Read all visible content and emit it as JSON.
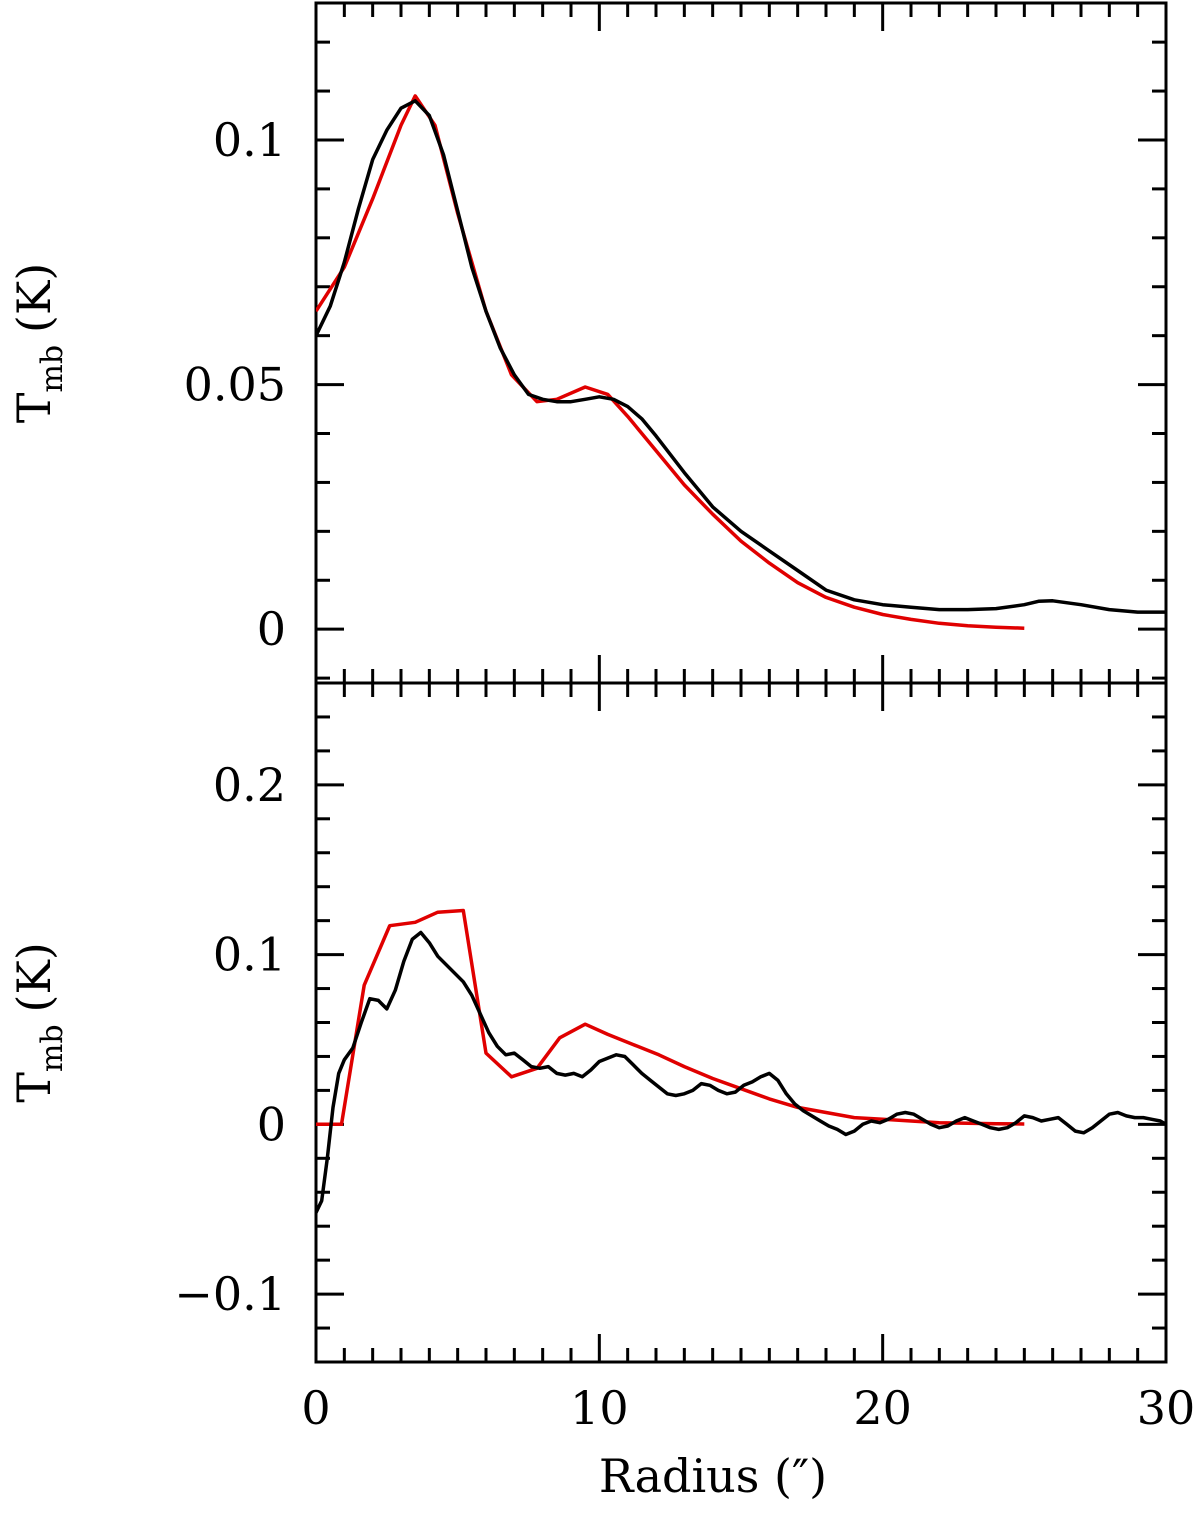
{
  "chart_data": [
    {
      "type": "line",
      "panel": "top",
      "ylabel": "T",
      "ylabel_subscript": "mb",
      "ylabel_unit": "(K)",
      "xlim": [
        0,
        30
      ],
      "ylim": [
        -0.011,
        0.128
      ],
      "x_ticks": [
        0,
        10,
        20,
        30
      ],
      "x_tick_labels_shown": false,
      "y_ticks": [
        0,
        0.05,
        0.1
      ],
      "y_tick_labels": [
        "0",
        "0.05",
        "0.1"
      ],
      "grid": false,
      "series": [
        {
          "color": "#e00000",
          "x": [
            0,
            1,
            2,
            3,
            3.5,
            4.2,
            5,
            6,
            6.9,
            7.8,
            8.5,
            9.5,
            10.3,
            11,
            12,
            13,
            14,
            15,
            16,
            17,
            18,
            19,
            20,
            21,
            22,
            23,
            24,
            25
          ],
          "y": [
            0.065,
            0.074,
            0.088,
            0.103,
            0.109,
            0.103,
            0.085,
            0.065,
            0.052,
            0.0465,
            0.047,
            0.0495,
            0.048,
            0.0435,
            0.0365,
            0.0295,
            0.0235,
            0.018,
            0.0135,
            0.0095,
            0.0065,
            0.0045,
            0.003,
            0.002,
            0.0012,
            0.0007,
            0.0004,
            0.0002
          ]
        },
        {
          "color": "#000000",
          "x": [
            0,
            0.5,
            1,
            1.5,
            2,
            2.5,
            3,
            3.5,
            4,
            4.5,
            5,
            5.5,
            6,
            6.5,
            7,
            7.5,
            8,
            8.5,
            9,
            9.5,
            10,
            10.5,
            11,
            11.5,
            12,
            13,
            14,
            15,
            16,
            17,
            18,
            19,
            20,
            21,
            22,
            23,
            24,
            25,
            25.5,
            26,
            27,
            28,
            29,
            30
          ],
          "y": [
            0.06,
            0.066,
            0.075,
            0.086,
            0.096,
            0.102,
            0.1065,
            0.108,
            0.105,
            0.097,
            0.0855,
            0.074,
            0.065,
            0.0575,
            0.052,
            0.048,
            0.047,
            0.0465,
            0.0465,
            0.047,
            0.0475,
            0.047,
            0.0455,
            0.043,
            0.0395,
            0.032,
            0.025,
            0.02,
            0.016,
            0.012,
            0.008,
            0.006,
            0.005,
            0.0045,
            0.004,
            0.004,
            0.0042,
            0.005,
            0.0057,
            0.0058,
            0.005,
            0.004,
            0.0035,
            0.0035
          ]
        }
      ]
    },
    {
      "type": "line",
      "panel": "bottom",
      "ylabel": "T",
      "ylabel_subscript": "mb",
      "ylabel_unit": "(K)",
      "xlabel": "Radius (″)",
      "xlim": [
        0,
        30
      ],
      "ylim": [
        -0.14,
        0.26
      ],
      "x_ticks": [
        0,
        10,
        20,
        30
      ],
      "x_tick_labels": [
        "0",
        "10",
        "20",
        "30"
      ],
      "y_ticks": [
        -0.1,
        0,
        0.1,
        0.2
      ],
      "y_tick_labels": [
        "−0.1",
        "0",
        "0.1",
        "0.2"
      ],
      "grid": false,
      "series": [
        {
          "color": "#e00000",
          "x": [
            0,
            0.9,
            1.7,
            2.6,
            3.5,
            4.3,
            5.2,
            6,
            6.9,
            7.8,
            8.6,
            9.5,
            10.3,
            11.2,
            12.1,
            13,
            14,
            15,
            16,
            17,
            18,
            19,
            20,
            21,
            22,
            23,
            24,
            25
          ],
          "y": [
            0,
            0,
            0.082,
            0.117,
            0.119,
            0.125,
            0.126,
            0.042,
            0.028,
            0.033,
            0.051,
            0.059,
            0.053,
            0.047,
            0.041,
            0.034,
            0.027,
            0.021,
            0.015,
            0.01,
            0.007,
            0.004,
            0.003,
            0.002,
            0.001,
            0.0007,
            0.0004,
            0.0002
          ]
        },
        {
          "color": "#000000",
          "x": [
            0,
            0.2,
            0.4,
            0.6,
            0.8,
            1,
            1.3,
            1.6,
            1.9,
            2.2,
            2.5,
            2.8,
            3.1,
            3.4,
            3.7,
            4,
            4.3,
            4.6,
            4.9,
            5.2,
            5.5,
            5.8,
            6.1,
            6.4,
            6.7,
            7,
            7.3,
            7.6,
            7.9,
            8.2,
            8.5,
            8.8,
            9.1,
            9.4,
            9.7,
            10,
            10.3,
            10.6,
            10.9,
            11.2,
            11.5,
            11.8,
            12.1,
            12.4,
            12.7,
            13,
            13.3,
            13.6,
            13.9,
            14.2,
            14.5,
            14.8,
            15.1,
            15.4,
            15.7,
            16,
            16.3,
            16.6,
            16.9,
            17.2,
            17.5,
            17.8,
            18.1,
            18.4,
            18.7,
            19,
            19.3,
            19.6,
            19.9,
            20.2,
            20.5,
            20.8,
            21.1,
            21.4,
            21.7,
            22,
            22.3,
            22.6,
            22.9,
            23.2,
            23.5,
            23.8,
            24.1,
            24.4,
            24.7,
            25,
            25.3,
            25.6,
            25.9,
            26.2,
            26.5,
            26.8,
            27.1,
            27.4,
            27.7,
            28,
            28.3,
            28.6,
            28.9,
            29.2,
            29.5,
            29.8,
            30
          ],
          "y": [
            -0.052,
            -0.045,
            -0.02,
            0.01,
            0.03,
            0.038,
            0.045,
            0.06,
            0.074,
            0.073,
            0.068,
            0.079,
            0.096,
            0.109,
            0.113,
            0.107,
            0.099,
            0.094,
            0.089,
            0.084,
            0.076,
            0.065,
            0.054,
            0.046,
            0.041,
            0.042,
            0.038,
            0.034,
            0.033,
            0.034,
            0.03,
            0.029,
            0.03,
            0.028,
            0.032,
            0.037,
            0.039,
            0.041,
            0.04,
            0.035,
            0.03,
            0.026,
            0.022,
            0.018,
            0.017,
            0.018,
            0.02,
            0.024,
            0.023,
            0.02,
            0.018,
            0.019,
            0.023,
            0.025,
            0.028,
            0.03,
            0.026,
            0.018,
            0.012,
            0.008,
            0.005,
            0.002,
            -0.001,
            -0.003,
            -0.006,
            -0.004,
            0,
            0.002,
            0.001,
            0.003,
            0.006,
            0.007,
            0.006,
            0.003,
            0,
            -0.002,
            -0.001,
            0.002,
            0.004,
            0.002,
            0,
            -0.002,
            -0.003,
            -0.002,
            0.001,
            0.005,
            0.004,
            0.002,
            0.003,
            0.004,
            0,
            -0.004,
            -0.005,
            -0.002,
            0.002,
            0.006,
            0.007,
            0.005,
            0.004,
            0.004,
            0.003,
            0.002,
            0
          ]
        }
      ]
    }
  ]
}
